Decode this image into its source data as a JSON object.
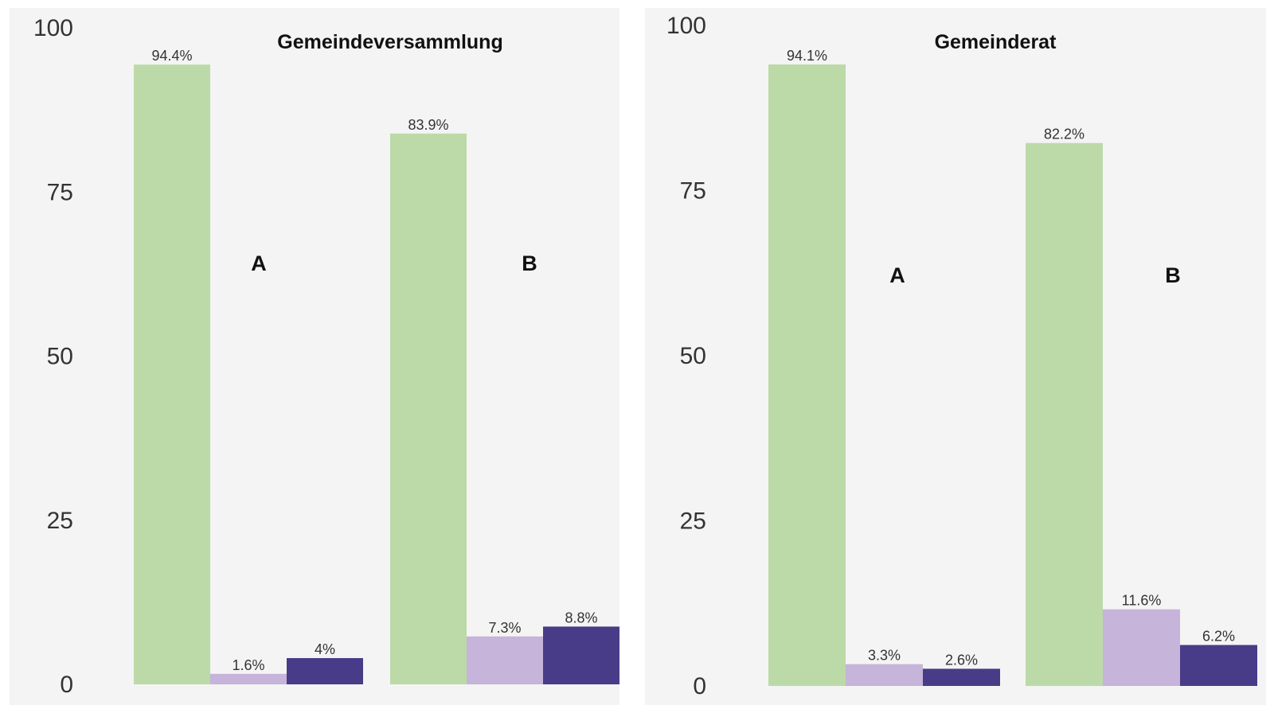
{
  "colors": {
    "panel_bg": "#f4f4f4",
    "series": [
      "#bcdaa8",
      "#c6b4da",
      "#483c88"
    ]
  },
  "chart_data": [
    {
      "type": "bar",
      "title": "Gemeindeversammlung",
      "ylim": [
        0,
        100
      ],
      "yticks": [
        0,
        25,
        50,
        75,
        100
      ],
      "grid": false,
      "categories": [
        "A",
        "B"
      ],
      "series": [
        {
          "values": [
            94.4,
            83.9
          ],
          "labels": [
            "94.4%",
            "83.9%"
          ]
        },
        {
          "values": [
            1.6,
            7.3
          ],
          "labels": [
            "1.6%",
            "7.3%"
          ]
        },
        {
          "values": [
            4,
            8.8
          ],
          "labels": [
            "4%",
            "8.8%"
          ]
        }
      ]
    },
    {
      "type": "bar",
      "title": "Gemeinderat",
      "ylim": [
        0,
        100
      ],
      "yticks": [
        0,
        25,
        50,
        75,
        100
      ],
      "grid": false,
      "categories": [
        "A",
        "B"
      ],
      "series": [
        {
          "values": [
            94.1,
            82.2
          ],
          "labels": [
            "94.1%",
            "82.2%"
          ]
        },
        {
          "values": [
            3.3,
            11.6
          ],
          "labels": [
            "3.3%",
            "11.6%"
          ]
        },
        {
          "values": [
            2.6,
            6.2
          ],
          "labels": [
            "2.6%",
            "6.2%"
          ]
        }
      ]
    }
  ]
}
